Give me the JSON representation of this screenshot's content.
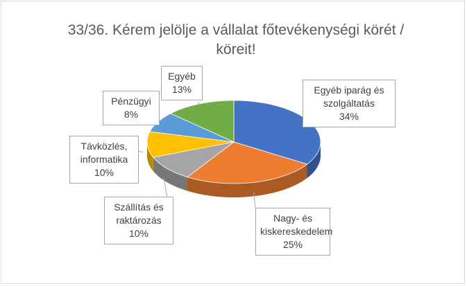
{
  "chart_data": {
    "type": "pie3d",
    "title": "33/36. Kérem jelölje a vállalat főtevékenységi körét / köreit!",
    "categories": [
      "Egyéb iparág és szolgáltatás",
      "Nagy- és kiskereskedelem",
      "Szállítás és raktározás",
      "Távközlés, informatika",
      "Pénzügyi",
      "Egyéb"
    ],
    "values": [
      34,
      25,
      10,
      10,
      8,
      13
    ],
    "value_labels": [
      "34%",
      "25%",
      "10%",
      "10%",
      "8%",
      "13%"
    ],
    "colors": [
      "#4472c4",
      "#ed7d31",
      "#a5a5a5",
      "#ffc000",
      "#5b9bd5",
      "#70ad47"
    ]
  }
}
